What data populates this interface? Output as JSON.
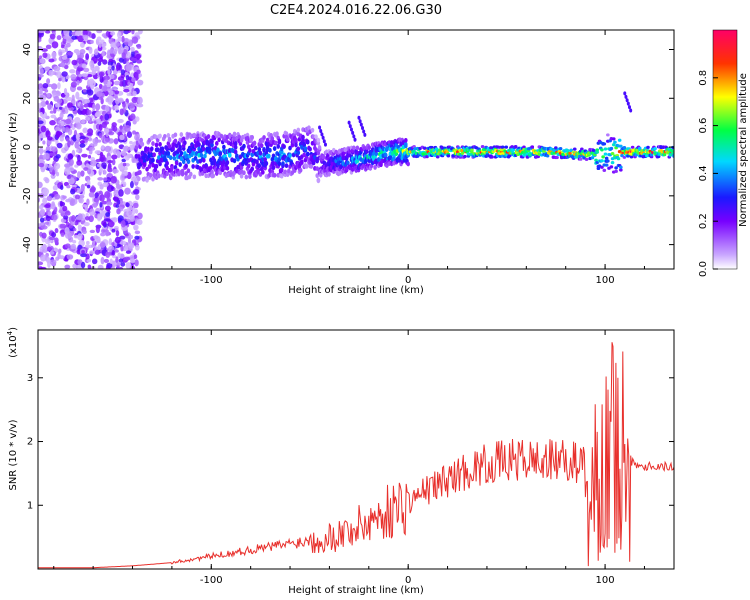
{
  "figure_title": "C2E4.2024.016.22.06.G30",
  "colors": {
    "snr_line": "#e8302c",
    "colorbar": [
      "#c9a6ff",
      "#7700ff",
      "#1a1aff",
      "#00d8ff",
      "#00ff44",
      "#ffff00",
      "#ff3300",
      "#ff0066"
    ]
  },
  "chart_data": [
    {
      "type": "heatmap",
      "title": "",
      "xlabel": "Height of straight line (km)",
      "ylabel": "Frequency (Hz)",
      "xlim": [
        -188,
        135
      ],
      "ylim": [
        -50,
        48
      ],
      "xticks": [
        -100,
        0,
        100
      ],
      "xtick_labels": [
        "-100",
        "0",
        "100"
      ],
      "yticks": [
        -40,
        -20,
        0,
        20,
        40
      ],
      "ytick_labels": [
        "-40",
        "-20",
        "0",
        "20",
        "40"
      ],
      "colorbar": {
        "label": "Normalized spectral amplitude",
        "range": [
          0,
          1
        ],
        "ticks": [
          0.0,
          0.2,
          0.4,
          0.6,
          0.8
        ],
        "tick_labels": [
          "0.0",
          "0.2",
          "0.4",
          "0.6",
          "0.8"
        ]
      },
      "ridge": {
        "x": [
          -138,
          -120,
          -100,
          -80,
          -60,
          -50,
          -45,
          -35,
          -25,
          -15,
          -5,
          0,
          10,
          30,
          50,
          70,
          90,
          100,
          110,
          135
        ],
        "freq": [
          -5,
          -4,
          -3,
          -4,
          -3,
          0,
          -7,
          -6,
          -5,
          -3,
          -2,
          -2,
          -2,
          -2,
          -2,
          -2,
          -3,
          -3,
          -2,
          -2
        ],
        "amplitude": [
          0.3,
          0.4,
          0.45,
          0.4,
          0.45,
          0.35,
          0.3,
          0.4,
          0.5,
          0.55,
          0.65,
          0.7,
          0.85,
          0.9,
          0.92,
          0.9,
          0.8,
          0.6,
          0.95,
          0.95
        ]
      }
    },
    {
      "type": "line",
      "title": "",
      "xlabel": "Height of straight line (km)",
      "ylabel": "SNR (10 * v/v)",
      "y_scale_label": "(x10",
      "y_scale_exp": "4",
      "xlim": [
        -188,
        135
      ],
      "ylim": [
        0,
        3.75
      ],
      "xticks": [
        -100,
        0,
        100
      ],
      "xtick_labels": [
        "-100",
        "0",
        "100"
      ],
      "yticks": [
        1,
        2,
        3
      ],
      "ytick_labels": [
        "1",
        "2",
        "3"
      ],
      "series": [
        {
          "name": "SNR",
          "x": [
            -188,
            -160,
            -140,
            -120,
            -100,
            -80,
            -60,
            -40,
            -30,
            -20,
            -10,
            0,
            10,
            20,
            30,
            40,
            50,
            60,
            70,
            80,
            90,
            95,
            100,
            105,
            110,
            115,
            120,
            125,
            135
          ],
          "values": [
            0.02,
            0.02,
            0.05,
            0.1,
            0.2,
            0.3,
            0.4,
            0.5,
            0.6,
            0.75,
            0.9,
            1.05,
            1.25,
            1.4,
            1.55,
            1.65,
            1.7,
            1.72,
            1.7,
            1.7,
            1.65,
            1.4,
            1.6,
            1.5,
            1.8,
            1.65,
            1.62,
            1.62,
            1.6
          ]
        }
      ]
    }
  ]
}
